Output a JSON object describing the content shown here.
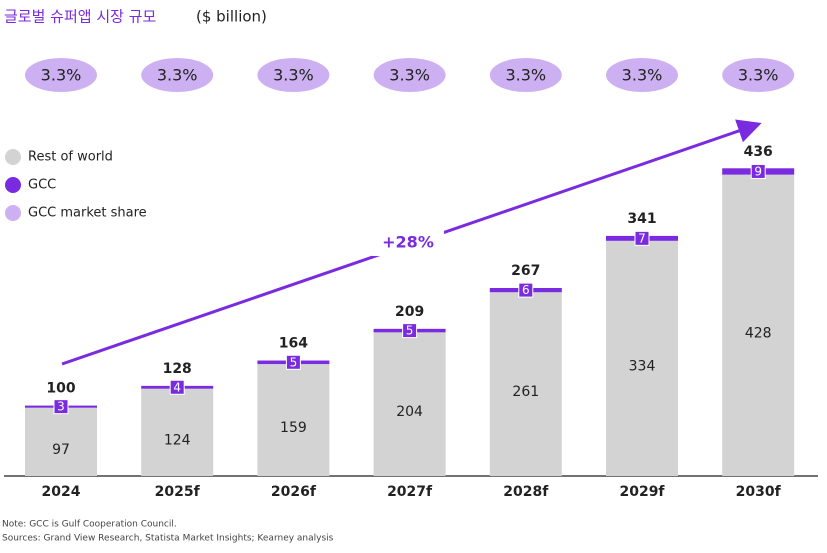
{
  "chart_data": {
    "type": "stacked-bar",
    "title": "글로벌 슈퍼앱 시장 규모",
    "subtitle": "($ billion)",
    "categories": [
      "2024",
      "2025f",
      "2026f",
      "2027f",
      "2028f",
      "2029f",
      "2030f"
    ],
    "series": [
      {
        "name": "Rest of world",
        "color": "#d3d3d3",
        "values": [
          97,
          124,
          159,
          204,
          261,
          334,
          428
        ]
      },
      {
        "name": "GCC",
        "color": "#7a2be0",
        "values": [
          3,
          4,
          5,
          5,
          6,
          7,
          9
        ]
      }
    ],
    "totals": [
      100,
      128,
      164,
      209,
      267,
      341,
      436
    ],
    "share": {
      "name": "GCC market share",
      "color": "#cdb0f2",
      "values": [
        3.3,
        3.3,
        3.3,
        3.3,
        3.3,
        3.3,
        3.3
      ],
      "value_labels": [
        "3.3%",
        "3.3%",
        "3.3%",
        "3.3%",
        "3.3%",
        "3.3%",
        "3.3%"
      ]
    },
    "annotation": "+28%",
    "notes": [
      "Note: GCC is Gulf Cooperation Council.",
      "Sources: Grand View Research, Statista Market Insights; Kearney analysis"
    ]
  }
}
